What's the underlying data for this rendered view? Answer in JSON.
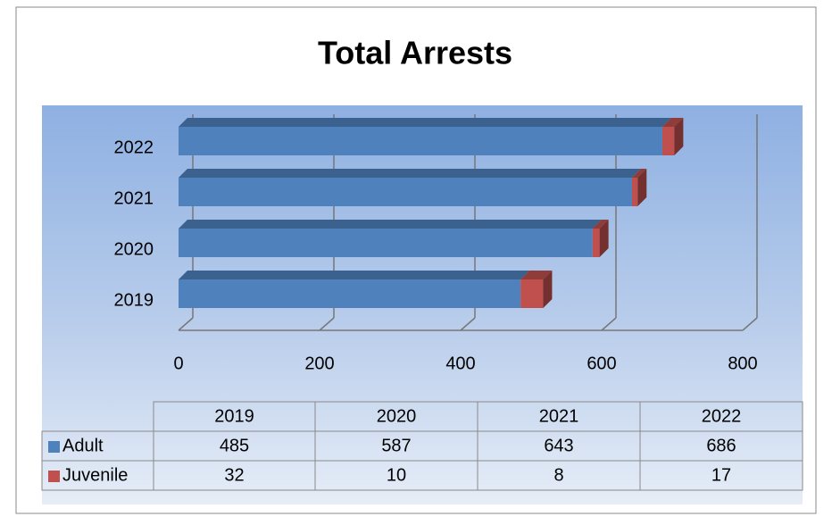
{
  "chart_data": {
    "type": "bar",
    "orientation": "horizontal",
    "stacked": true,
    "three_d": true,
    "title": "Total Arrests",
    "categories": [
      "2019",
      "2020",
      "2021",
      "2022"
    ],
    "series": [
      {
        "name": "Adult",
        "color": "#4f81bd",
        "values": [
          485,
          587,
          643,
          686
        ]
      },
      {
        "name": "Juvenile",
        "color": "#c0504d",
        "values": [
          32,
          10,
          8,
          17
        ]
      }
    ],
    "xlim": [
      0,
      800
    ],
    "xticks": [
      0,
      200,
      400,
      600,
      800
    ],
    "grid": true,
    "data_table": true
  }
}
